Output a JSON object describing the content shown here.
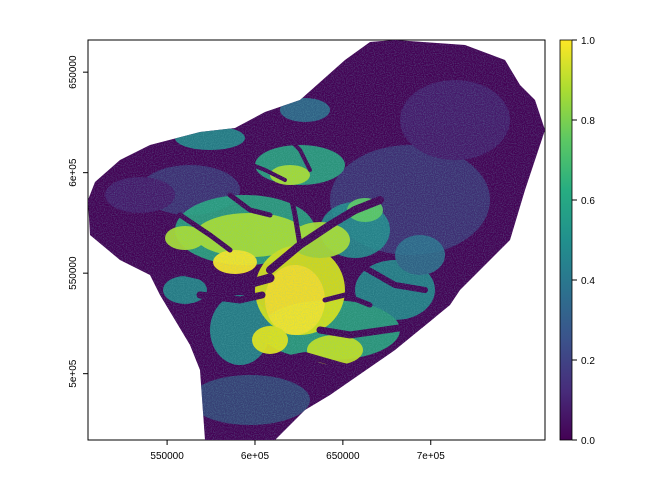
{
  "map": {
    "colormap": "viridis",
    "colors": {
      "nodata_background": "#ffffff",
      "axis": "#000000",
      "viridis_low": "#440154",
      "viridis_mid": "#21908d",
      "viridis_high": "#fde725"
    },
    "x_axis": {
      "range": [
        505000,
        765000
      ],
      "ticks": [
        550000,
        600000,
        650000,
        700000
      ],
      "tick_labels": [
        "550000",
        "6e+05",
        "650000",
        "7e+05"
      ]
    },
    "y_axis": {
      "range": [
        467000,
        666000
      ],
      "ticks": [
        500000,
        550000,
        600000,
        650000
      ],
      "tick_labels": [
        "5e+05",
        "550000",
        "6e+05",
        "650000"
      ]
    },
    "legend": {
      "range": [
        0.0,
        1.0
      ],
      "ticks": [
        0.0,
        0.2,
        0.4,
        0.6,
        0.8,
        1.0
      ],
      "tick_labels": [
        "0.0",
        "0.2",
        "0.4",
        "0.6",
        "0.8",
        "1.0"
      ]
    }
  }
}
